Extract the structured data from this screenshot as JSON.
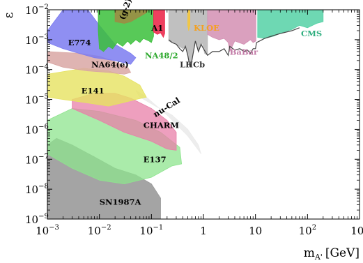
{
  "chart_data": {
    "type": "area",
    "title": "",
    "xlabel": "m",
    "xlabel_sub": "A'",
    "xlabel_unit": "[GeV]",
    "ylabel": "ε",
    "x_scale": "log",
    "y_scale": "log",
    "xlim": [
      0.001,
      1000
    ],
    "ylim": [
      1e-09,
      0.01
    ],
    "x_ticks": [
      0.001,
      0.01,
      0.1,
      1,
      10,
      100,
      1000
    ],
    "x_tick_labels": [
      {
        "base": "10",
        "exp": "−3"
      },
      {
        "base": "10",
        "exp": "−2"
      },
      {
        "base": "10",
        "exp": "−1"
      },
      {
        "base": "1",
        "exp": ""
      },
      {
        "base": "10",
        "exp": ""
      },
      {
        "base": "10",
        "exp": "2"
      },
      {
        "base": "10",
        "exp": "3"
      }
    ],
    "y_ticks": [
      1e-09,
      1e-08,
      1e-07,
      1e-06,
      1e-05,
      0.0001,
      0.001,
      0.01
    ],
    "y_tick_labels": [
      {
        "base": "10",
        "exp": "−9"
      },
      {
        "base": "10",
        "exp": "−8"
      },
      {
        "base": "10",
        "exp": "−7"
      },
      {
        "base": "10",
        "exp": "−6"
      },
      {
        "base": "10",
        "exp": "−5"
      },
      {
        "base": "10",
        "exp": "−4"
      },
      {
        "base": "10",
        "exp": "−3"
      },
      {
        "base": "10",
        "exp": "−2"
      }
    ],
    "grid": false,
    "regions": [
      {
        "name": "SN1987A",
        "color": "#9a9a9a",
        "opacity": 0.9,
        "label_color": "#000000",
        "boundary": [
          [
            0.001,
            1e-09
          ],
          [
            0.001,
            3e-07
          ],
          [
            0.0015,
            5e-07
          ],
          [
            0.003,
            3e-07
          ],
          [
            0.008,
            1.2e-07
          ],
          [
            0.02,
            5e-08
          ],
          [
            0.05,
            3e-08
          ],
          [
            0.1,
            1.5e-08
          ],
          [
            0.15,
            5e-09
          ],
          [
            0.15,
            1e-09
          ]
        ]
      },
      {
        "name": "E137",
        "color": "#8ee48e",
        "opacity": 0.75,
        "label_color": "#000000",
        "boundary": [
          [
            0.001,
            2e-06
          ],
          [
            0.003,
            5e-06
          ],
          [
            0.01,
            4e-06
          ],
          [
            0.05,
            2e-06
          ],
          [
            0.15,
            8e-07
          ],
          [
            0.35,
            2.5e-07
          ],
          [
            0.38,
            7e-08
          ],
          [
            0.25,
            6e-08
          ],
          [
            0.1,
            2.5e-08
          ],
          [
            0.03,
            1.5e-08
          ],
          [
            0.01,
            2e-08
          ],
          [
            0.003,
            5e-08
          ],
          [
            0.001,
            1.5e-07
          ]
        ]
      },
      {
        "name": "nu-Cal",
        "color": "#ebebeb",
        "opacity": 0.9,
        "label_color": "#000000",
        "boundary": [
          [
            0.05,
            2e-05
          ],
          [
            0.08,
            1.2e-05
          ],
          [
            0.2,
            3e-06
          ],
          [
            0.5,
            6e-07
          ],
          [
            0.8,
            2e-07
          ],
          [
            0.9,
            1.5e-07
          ],
          [
            0.8,
            3e-07
          ],
          [
            0.5,
            1e-06
          ],
          [
            0.25,
            3e-06
          ],
          [
            0.12,
            6e-06
          ],
          [
            0.06,
            1.2e-05
          ]
        ]
      },
      {
        "name": "CHARM",
        "color": "#e87fa8",
        "opacity": 0.75,
        "label_color": "#000000",
        "boundary": [
          [
            0.003,
            1e-05
          ],
          [
            0.008,
            1.6e-05
          ],
          [
            0.02,
            1.6e-05
          ],
          [
            0.04,
            1.1e-05
          ],
          [
            0.1,
            5e-06
          ],
          [
            0.2,
            2e-06
          ],
          [
            0.3,
            8e-07
          ],
          [
            0.3,
            2e-07
          ],
          [
            0.2,
            2.2e-07
          ],
          [
            0.1,
            4e-07
          ],
          [
            0.03,
            8e-07
          ],
          [
            0.01,
            2e-06
          ],
          [
            0.003,
            5e-06
          ]
        ]
      },
      {
        "name": "E141",
        "color": "#e6e260",
        "opacity": 0.8,
        "label_color": "#000000",
        "boundary": [
          [
            0.001,
            7e-05
          ],
          [
            0.005,
            0.00011
          ],
          [
            0.015,
            9e-05
          ],
          [
            0.03,
            6e-05
          ],
          [
            0.06,
            3e-05
          ],
          [
            0.08,
            1.2e-05
          ],
          [
            0.05,
            1e-05
          ],
          [
            0.03,
            8e-06
          ],
          [
            0.015,
            6e-06
          ],
          [
            0.005,
            8e-06
          ],
          [
            0.002,
            1e-05
          ],
          [
            0.001,
            1.2e-05
          ]
        ]
      },
      {
        "name": "NA64(e)",
        "color": "#d9a7a4",
        "opacity": 0.85,
        "label_color": "#000000",
        "boundary": [
          [
            0.001,
            0.0004
          ],
          [
            0.004,
            0.00035
          ],
          [
            0.01,
            0.00028
          ],
          [
            0.02,
            0.00018
          ],
          [
            0.035,
            0.00012
          ],
          [
            0.04,
            8e-05
          ],
          [
            0.03,
            7e-05
          ],
          [
            0.015,
            8e-05
          ],
          [
            0.006,
            9e-05
          ],
          [
            0.002,
            0.00012
          ],
          [
            0.001,
            0.00018
          ]
        ]
      },
      {
        "name": "E774",
        "color": "#7b7bf0",
        "opacity": 0.85,
        "label_color": "#000000",
        "boundary": [
          [
            0.001,
            0.002
          ],
          [
            0.002,
            0.01
          ],
          [
            0.006,
            0.01
          ],
          [
            0.01,
            0.003
          ],
          [
            0.02,
            0.0007
          ],
          [
            0.04,
            0.00035
          ],
          [
            0.05,
            0.00025
          ],
          [
            0.04,
            0.00015
          ],
          [
            0.02,
            0.0002
          ],
          [
            0.008,
            0.00025
          ],
          [
            0.004,
            0.00035
          ],
          [
            0.002,
            0.0005
          ],
          [
            0.001,
            0.0008
          ]
        ]
      },
      {
        "name": "NA48/2",
        "color": "#3bbf3b",
        "opacity": 0.85,
        "label_color": "#2ca82c",
        "boundary": [
          [
            0.0095,
            0.01
          ],
          [
            0.11,
            0.01
          ],
          [
            0.11,
            0.0013
          ],
          [
            0.1,
            0.0008
          ],
          [
            0.09,
            0.0009
          ],
          [
            0.07,
            0.0011
          ],
          [
            0.06,
            0.0008
          ],
          [
            0.05,
            0.001
          ],
          [
            0.04,
            0.0007
          ],
          [
            0.035,
            0.0009
          ],
          [
            0.028,
            0.0006
          ],
          [
            0.022,
            0.0008
          ],
          [
            0.018,
            0.0005
          ],
          [
            0.015,
            0.0006
          ],
          [
            0.012,
            0.0004
          ],
          [
            0.01,
            0.0005
          ],
          [
            0.0095,
            0.002
          ]
        ]
      },
      {
        "name": "(g-2)e",
        "color": "#a08a43",
        "opacity": 0.85,
        "label_color": "#000000",
        "boundary": [
          [
            0.02,
            0.01
          ],
          [
            0.085,
            0.01
          ],
          [
            0.08,
            0.008
          ],
          [
            0.06,
            0.006
          ],
          [
            0.04,
            0.004
          ],
          [
            0.03,
            0.0035
          ],
          [
            0.02,
            0.004
          ]
        ]
      },
      {
        "name": "A1",
        "color": "#ec2b4e",
        "opacity": 0.9,
        "label_color": "#000000",
        "boundary": [
          [
            0.11,
            0.01
          ],
          [
            0.18,
            0.01
          ],
          [
            0.18,
            0.0016
          ],
          [
            0.17,
            0.0012
          ],
          [
            0.15,
            0.0017
          ],
          [
            0.13,
            0.0015
          ],
          [
            0.11,
            0.0018
          ]
        ]
      },
      {
        "name": "LHCb",
        "color": "#bdbdbd",
        "opacity": 0.95,
        "label_color": "#333333",
        "boundary": [
          [
            0.215,
            0.01
          ],
          [
            0.65,
            0.01
          ],
          [
            1.2,
            0.01
          ],
          [
            1.2,
            0.0003
          ],
          [
            1.05,
            0.00035
          ],
          [
            0.95,
            0.0008
          ],
          [
            0.8,
            0.0004
          ],
          [
            0.7,
            0.0009
          ],
          [
            0.6,
            0.0002
          ],
          [
            0.55,
            0.00012
          ],
          [
            0.5,
            0.0003
          ],
          [
            0.45,
            0.0006
          ],
          [
            0.4,
            0.0005
          ],
          [
            0.3,
            0.0007
          ],
          [
            0.25,
            0.0008
          ],
          [
            0.215,
            0.0009
          ]
        ]
      },
      {
        "name": "KLOE",
        "color": "#f4c63c",
        "opacity": 0.9,
        "label_color": "#f4a020",
        "boundary": [
          [
            0.5,
            0.01
          ],
          [
            0.55,
            0.01
          ],
          [
            0.55,
            0.003
          ],
          [
            0.52,
            0.002
          ],
          [
            0.5,
            0.003
          ]
        ]
      },
      {
        "name": "BaBar",
        "color": "#d38fb3",
        "opacity": 0.85,
        "label_color": "#c27aa6",
        "boundary": [
          [
            1.2,
            0.01
          ],
          [
            10.2,
            0.01
          ],
          [
            10.2,
            0.0009
          ],
          [
            9,
            0.0008
          ],
          [
            8,
            0.001
          ],
          [
            6,
            0.0007
          ],
          [
            4,
            0.0009
          ],
          [
            3.2,
            0.0004
          ],
          [
            3,
            0.0008
          ],
          [
            2.5,
            0.0011
          ],
          [
            2,
            0.001
          ],
          [
            1.5,
            0.0012
          ],
          [
            1.2,
            0.0015
          ]
        ]
      },
      {
        "name": "CMS",
        "color": "#55d1a6",
        "opacity": 0.85,
        "label_color": "#2fae7f",
        "boundary": [
          [
            11,
            0.01
          ],
          [
            200,
            0.01
          ],
          [
            200,
            0.004
          ],
          [
            150,
            0.0035
          ],
          [
            100,
            0.0025
          ],
          [
            70,
            0.003
          ],
          [
            50,
            0.0022
          ],
          [
            35,
            0.0018
          ],
          [
            22,
            0.0013
          ],
          [
            15,
            0.0011
          ],
          [
            11,
            0.0012
          ]
        ]
      }
    ],
    "curves": [
      {
        "name": "LHCb-limit",
        "color": "#444444",
        "points": [
          [
            0.215,
            0.001
          ],
          [
            0.25,
            0.0008
          ],
          [
            0.3,
            0.0007
          ],
          [
            0.35,
            0.0005
          ],
          [
            0.4,
            0.0004
          ],
          [
            0.45,
            0.0006
          ],
          [
            0.5,
            0.0003
          ],
          [
            0.55,
            0.00012
          ],
          [
            0.6,
            0.0002
          ],
          [
            0.7,
            0.0009
          ],
          [
            0.8,
            0.0004
          ],
          [
            0.9,
            0.0007
          ],
          [
            1.0,
            0.0005
          ],
          [
            1.2,
            0.0003
          ],
          [
            1.5,
            0.0004
          ],
          [
            2.0,
            0.0004
          ],
          [
            2.5,
            0.0005
          ],
          [
            3.0,
            0.0003
          ],
          [
            3.2,
            0.0006
          ],
          [
            4,
            0.00045
          ],
          [
            5,
            0.0005
          ],
          [
            6,
            0.0004
          ],
          [
            7,
            0.00045
          ],
          [
            8,
            0.00035
          ],
          [
            9,
            0.0005
          ],
          [
            10,
            0.0005
          ],
          [
            10.5,
            0.0008
          ],
          [
            12,
            0.0009
          ],
          [
            15,
            0.0011
          ],
          [
            20,
            0.0013
          ],
          [
            30,
            0.0016
          ],
          [
            50,
            0.002
          ],
          [
            70,
            0.0025
          ]
        ]
      }
    ],
    "region_labels": [
      {
        "text": "E774",
        "x": 0.0025,
        "y": 0.00065
      },
      {
        "text": "(g-2)e",
        "x": 0.03,
        "y": 0.0045,
        "rotate": -70
      },
      {
        "text": "A1",
        "x": 0.1,
        "y": 0.002
      },
      {
        "text": "KLOE",
        "x": 0.65,
        "y": 0.002
      },
      {
        "text": "CMS",
        "x": 75,
        "y": 0.0013
      },
      {
        "text": "NA48/2",
        "x": 0.075,
        "y": 0.00024
      },
      {
        "text": "BaBar",
        "x": 3.2,
        "y": 0.00031
      },
      {
        "text": "LHCb",
        "x": 0.35,
        "y": 0.00012
      },
      {
        "text": "NA64(e)",
        "x": 0.007,
        "y": 0.00012
      },
      {
        "text": "E141",
        "x": 0.0045,
        "y": 1.6e-05
      },
      {
        "text": "nu-Cal",
        "x": 0.12,
        "y": 2.5e-06,
        "rotate": -32
      },
      {
        "text": "CHARM",
        "x": 0.07,
        "y": 1.1e-06
      },
      {
        "text": "E137",
        "x": 0.07,
        "y": 8e-08
      },
      {
        "text": "SN1987A",
        "x": 0.01,
        "y": 3e-09
      }
    ]
  }
}
